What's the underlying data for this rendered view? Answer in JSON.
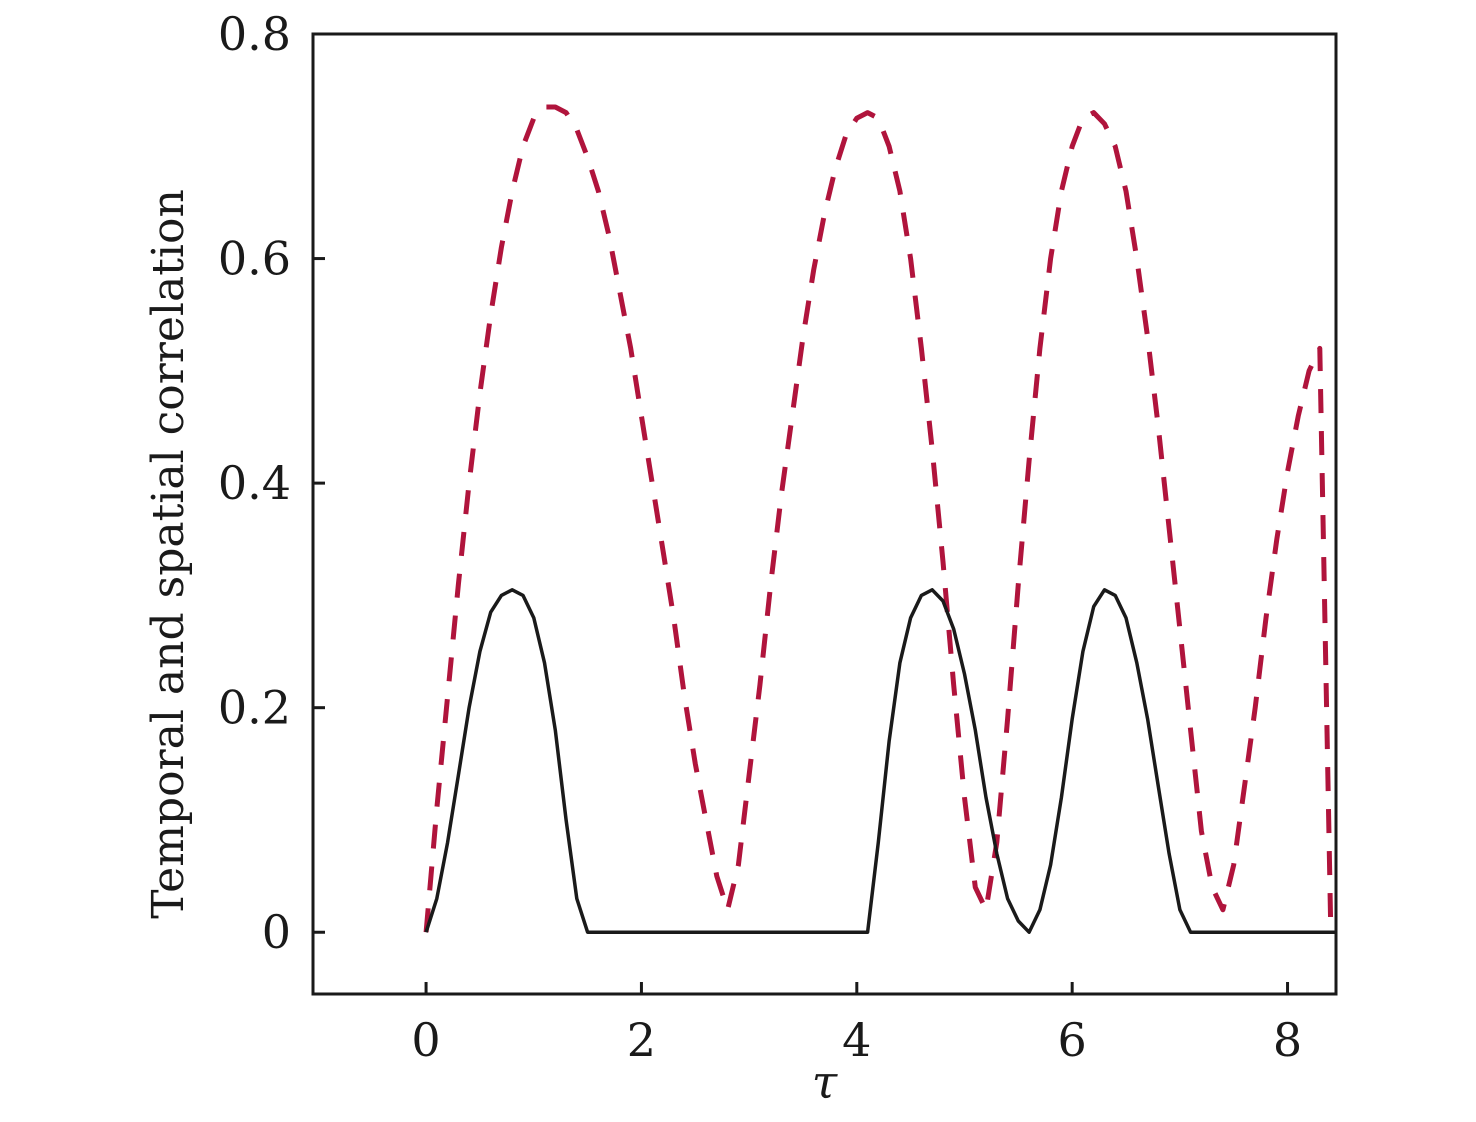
{
  "chart_data": {
    "type": "line",
    "title": "",
    "xlabel": "τ",
    "ylabel": "Temporal and spatial correlation",
    "xlim": [
      -1.05,
      8.45
    ],
    "ylim": [
      -0.055,
      0.8
    ],
    "xticks": [
      0,
      2,
      4,
      6,
      8
    ],
    "xtick_labels": [
      "0",
      "2",
      "4",
      "6",
      "8"
    ],
    "yticks": [
      0,
      0.2,
      0.4,
      0.6,
      0.8
    ],
    "ytick_labels": [
      "0",
      "0.2",
      "0.4",
      "0.6",
      "0.8"
    ],
    "grid": false,
    "legend": "none",
    "series": [
      {
        "style": "dashed",
        "color": "#b0143c",
        "x": [
          0.0,
          0.1,
          0.2,
          0.3,
          0.4,
          0.5,
          0.6,
          0.7,
          0.8,
          0.9,
          1.0,
          1.1,
          1.2,
          1.3,
          1.4,
          1.5,
          1.6,
          1.7,
          1.8,
          1.9,
          2.0,
          2.1,
          2.2,
          2.3,
          2.4,
          2.5,
          2.6,
          2.7,
          2.8,
          2.9,
          3.0,
          3.1,
          3.2,
          3.3,
          3.4,
          3.5,
          3.6,
          3.7,
          3.8,
          3.9,
          4.0,
          4.1,
          4.2,
          4.3,
          4.4,
          4.5,
          4.6,
          4.7,
          4.8,
          4.9,
          5.0,
          5.1,
          5.2,
          5.3,
          5.4,
          5.5,
          5.6,
          5.7,
          5.8,
          5.9,
          6.0,
          6.1,
          6.2,
          6.3,
          6.4,
          6.5,
          6.6,
          6.7,
          6.8,
          6.9,
          7.0,
          7.1,
          7.2,
          7.3,
          7.4,
          7.5,
          7.6,
          7.7,
          7.8,
          7.9,
          8.0,
          8.1,
          8.2,
          8.3,
          8.4
        ],
        "y": [
          0.0,
          0.11,
          0.21,
          0.31,
          0.4,
          0.48,
          0.55,
          0.61,
          0.66,
          0.7,
          0.725,
          0.735,
          0.735,
          0.73,
          0.715,
          0.69,
          0.66,
          0.62,
          0.57,
          0.52,
          0.46,
          0.4,
          0.34,
          0.28,
          0.21,
          0.15,
          0.1,
          0.05,
          0.02,
          0.06,
          0.14,
          0.22,
          0.31,
          0.39,
          0.46,
          0.53,
          0.59,
          0.64,
          0.68,
          0.71,
          0.725,
          0.73,
          0.725,
          0.7,
          0.66,
          0.6,
          0.52,
          0.43,
          0.33,
          0.22,
          0.12,
          0.04,
          0.02,
          0.08,
          0.19,
          0.31,
          0.42,
          0.52,
          0.6,
          0.66,
          0.7,
          0.725,
          0.73,
          0.72,
          0.7,
          0.66,
          0.6,
          0.53,
          0.45,
          0.36,
          0.27,
          0.18,
          0.09,
          0.04,
          0.02,
          0.06,
          0.13,
          0.2,
          0.28,
          0.35,
          0.41,
          0.46,
          0.5,
          0.52,
          0.01
        ]
      },
      {
        "style": "solid",
        "color": "#1a1a1a",
        "x": [
          0.0,
          0.1,
          0.2,
          0.3,
          0.4,
          0.5,
          0.6,
          0.7,
          0.8,
          0.9,
          1.0,
          1.1,
          1.2,
          1.3,
          1.4,
          1.5,
          1.6,
          1.7,
          2.0,
          3.0,
          4.0,
          4.1,
          4.2,
          4.3,
          4.4,
          4.5,
          4.6,
          4.7,
          4.8,
          4.9,
          5.0,
          5.1,
          5.2,
          5.3,
          5.4,
          5.5,
          5.6,
          5.7,
          5.8,
          5.9,
          6.0,
          6.1,
          6.2,
          6.3,
          6.4,
          6.5,
          6.6,
          6.7,
          6.8,
          6.9,
          7.0,
          7.1,
          7.2,
          7.3,
          7.5,
          8.0,
          8.45
        ],
        "y": [
          0.0,
          0.03,
          0.08,
          0.14,
          0.2,
          0.25,
          0.285,
          0.3,
          0.305,
          0.3,
          0.28,
          0.24,
          0.18,
          0.1,
          0.03,
          0.0,
          0.0,
          0.0,
          0.0,
          0.0,
          0.0,
          0.0,
          0.08,
          0.17,
          0.24,
          0.28,
          0.3,
          0.305,
          0.295,
          0.27,
          0.23,
          0.18,
          0.12,
          0.07,
          0.03,
          0.01,
          0.0,
          0.02,
          0.06,
          0.12,
          0.19,
          0.25,
          0.29,
          0.305,
          0.3,
          0.28,
          0.24,
          0.19,
          0.13,
          0.07,
          0.02,
          0.0,
          0.0,
          0.0,
          0.0,
          0.0,
          0.0
        ]
      }
    ]
  }
}
